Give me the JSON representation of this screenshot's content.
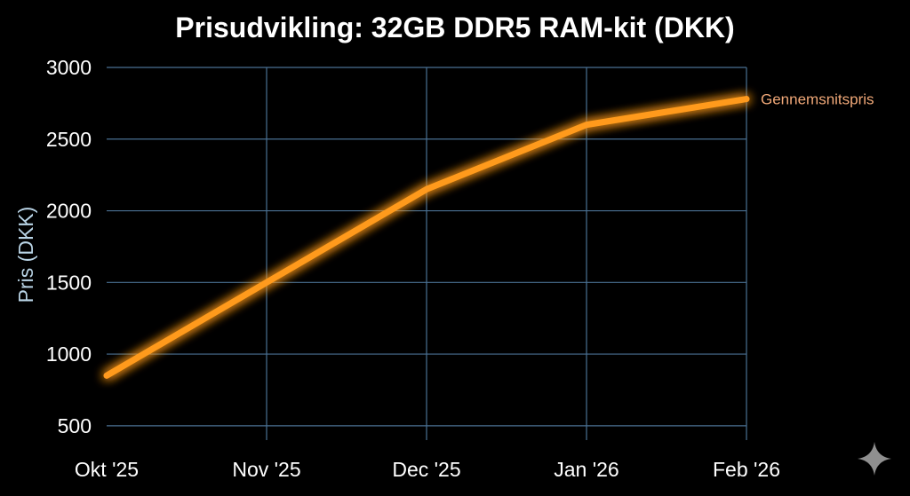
{
  "chart_data": {
    "type": "line",
    "title": "Prisudvikling: 32GB DDR5 RAM-kit (DKK)",
    "xlabel": "",
    "ylabel": "Pris (DKK)",
    "categories": [
      "Okt '25",
      "Nov '25",
      "Dec '25",
      "Jan '26",
      "Feb '26"
    ],
    "y_ticks": [
      "3000",
      "2500",
      "2000",
      "1500",
      "1000",
      "500"
    ],
    "ylim": [
      400,
      3000
    ],
    "grid": true,
    "series": [
      {
        "name": "Gennemsnitspris",
        "color": "#ff9a1f",
        "values": [
          850,
          1500,
          2150,
          2600,
          2780
        ]
      }
    ]
  },
  "colors": {
    "background": "#000000",
    "grid": "#4a7193",
    "axis": "#3aa0e0",
    "line": "#ff9a1f",
    "series_label": "#f0a878"
  },
  "watermark": {
    "icon": "sparkle-icon"
  }
}
